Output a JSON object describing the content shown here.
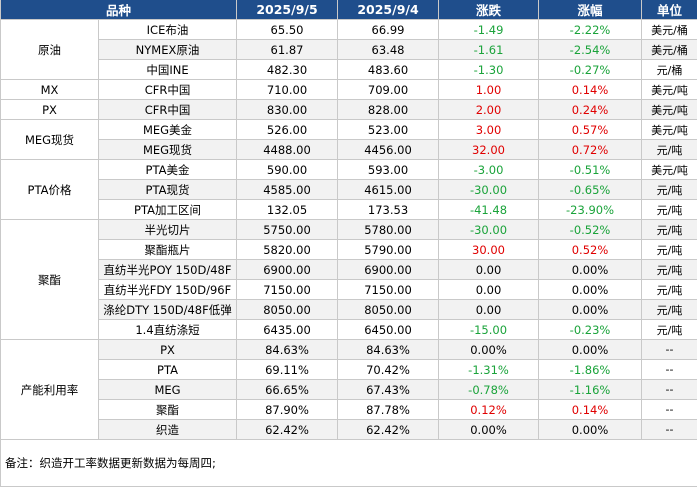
{
  "header": {
    "category": "品种",
    "date1": "2025/9/5",
    "date2": "2025/9/4",
    "change": "涨跌",
    "pct": "涨幅",
    "unit": "单位"
  },
  "rows": [
    {
      "cat": "原油",
      "name": "ICE布油",
      "v1": "65.50",
      "v2": "66.99",
      "chg": "-1.49",
      "pct": "-2.22%",
      "unit": "美元/桶"
    },
    {
      "name": "NYMEX原油",
      "v1": "61.87",
      "v2": "63.48",
      "chg": "-1.61",
      "pct": "-2.54%",
      "unit": "美元/桶"
    },
    {
      "name": "中国INE",
      "v1": "482.30",
      "v2": "483.60",
      "chg": "-1.30",
      "pct": "-0.27%",
      "unit": "元/桶"
    },
    {
      "cat": "MX",
      "name": "CFR中国",
      "v1": "710.00",
      "v2": "709.00",
      "chg": "1.00",
      "pct": "0.14%",
      "unit": "美元/吨"
    },
    {
      "cat": "PX",
      "name": "CFR中国",
      "v1": "830.00",
      "v2": "828.00",
      "chg": "2.00",
      "pct": "0.24%",
      "unit": "美元/吨"
    },
    {
      "cat": "MEG现货",
      "name": "MEG美金",
      "v1": "526.00",
      "v2": "523.00",
      "chg": "3.00",
      "pct": "0.57%",
      "unit": "美元/吨"
    },
    {
      "name": "MEG现货",
      "v1": "4488.00",
      "v2": "4456.00",
      "chg": "32.00",
      "pct": "0.72%",
      "unit": "元/吨"
    },
    {
      "cat": "PTA价格",
      "name": "PTA美金",
      "v1": "590.00",
      "v2": "593.00",
      "chg": "-3.00",
      "pct": "-0.51%",
      "unit": "美元/吨"
    },
    {
      "name": "PTA现货",
      "v1": "4585.00",
      "v2": "4615.00",
      "chg": "-30.00",
      "pct": "-0.65%",
      "unit": "元/吨"
    },
    {
      "name": "PTA加工区间",
      "v1": "132.05",
      "v2": "173.53",
      "chg": "-41.48",
      "pct": "-23.90%",
      "unit": "元/吨"
    },
    {
      "cat": "聚酯",
      "name": "半光切片",
      "v1": "5750.00",
      "v2": "5780.00",
      "chg": "-30.00",
      "pct": "-0.52%",
      "unit": "元/吨"
    },
    {
      "name": "聚酯瓶片",
      "v1": "5820.00",
      "v2": "5790.00",
      "chg": "30.00",
      "pct": "0.52%",
      "unit": "元/吨"
    },
    {
      "name": "直纺半光POY 150D/48F",
      "v1": "6900.00",
      "v2": "6900.00",
      "chg": "0.00",
      "pct": "0.00%",
      "unit": "元/吨"
    },
    {
      "name": "直纺半光FDY 150D/96F",
      "v1": "7150.00",
      "v2": "7150.00",
      "chg": "0.00",
      "pct": "0.00%",
      "unit": "元/吨"
    },
    {
      "name": "涤纶DTY 150D/48F低弹",
      "v1": "8050.00",
      "v2": "8050.00",
      "chg": "0.00",
      "pct": "0.00%",
      "unit": "元/吨"
    },
    {
      "name": "1.4直纺涤短",
      "v1": "6435.00",
      "v2": "6450.00",
      "chg": "-15.00",
      "pct": "-0.23%",
      "unit": "元/吨"
    },
    {
      "cat": "产能利用率",
      "name": "PX",
      "v1": "84.63%",
      "v2": "84.63%",
      "chg": "0.00%",
      "pct": "0.00%",
      "unit": "--"
    },
    {
      "name": "PTA",
      "v1": "69.11%",
      "v2": "70.42%",
      "chg": "-1.31%",
      "pct": "-1.86%",
      "unit": "--"
    },
    {
      "name": "MEG",
      "v1": "66.65%",
      "v2": "67.43%",
      "chg": "-0.78%",
      "pct": "-1.16%",
      "unit": "--"
    },
    {
      "name": "聚酯",
      "v1": "87.90%",
      "v2": "87.78%",
      "chg": "0.12%",
      "pct": "0.14%",
      "unit": "--"
    },
    {
      "name": "织造",
      "v1": "62.42%",
      "v2": "62.42%",
      "chg": "0.00%",
      "pct": "0.00%",
      "unit": "--"
    }
  ],
  "note": "备注：织造开工率数据更新数据为每周四;",
  "colors": {
    "header_bg": "#1f4e8c",
    "positive": "#e00000",
    "negative": "#1aa33a",
    "shade": "#f2f2f2"
  }
}
